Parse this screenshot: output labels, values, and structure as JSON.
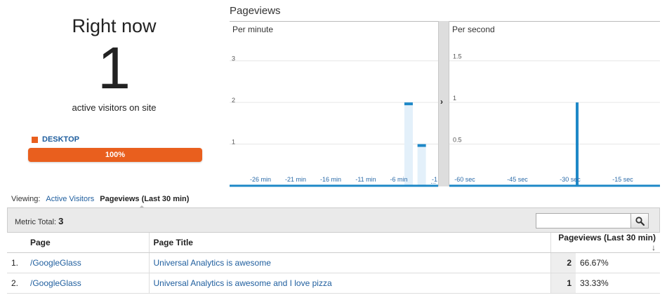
{
  "summary": {
    "title": "Right now",
    "active_count": "1",
    "caption": "active visitors on site",
    "device_label": "DESKTOP",
    "device_percent_label": "100%",
    "device_fraction": 1.0,
    "device_color": "#e95f1e"
  },
  "pageviews": {
    "title": "Pageviews",
    "per_minute": {
      "title": "Per minute",
      "y_ticks": [
        "3",
        "2",
        "1"
      ],
      "x_ticks": [
        "-26 min",
        "-21 min",
        "-16 min",
        "-11 min",
        "-6 min",
        "-1"
      ],
      "truncated_label": "..."
    },
    "per_second": {
      "title": "Per second",
      "y_ticks": [
        "1.5",
        "1",
        "0.5"
      ],
      "x_ticks": [
        "-60 sec",
        "-45 sec",
        "-30 sec",
        "-15 sec"
      ]
    },
    "divider_icon": "chevron-right-icon"
  },
  "chart_data": [
    {
      "type": "bar",
      "title": "Per minute",
      "xlabel": "",
      "ylabel": "",
      "ylim": [
        0,
        3.5
      ],
      "x_ticks": [
        "-26 min",
        "-21 min",
        "-16 min",
        "-11 min",
        "-6 min",
        "-1"
      ],
      "minutes": [
        -30,
        -29,
        -28,
        -27,
        -26,
        -25,
        -24,
        -23,
        -22,
        -21,
        -20,
        -19,
        -18,
        -17,
        -16,
        -15,
        -14,
        -13,
        -12,
        -11,
        -10,
        -9,
        -8,
        -7,
        -6,
        -5,
        -4,
        -3,
        -2,
        -1
      ],
      "values": [
        0,
        0,
        0,
        0,
        0,
        0,
        0,
        0,
        0,
        0,
        0,
        0,
        0,
        0,
        0,
        0,
        0,
        0,
        0,
        0,
        0,
        0,
        0,
        0,
        0,
        0,
        2,
        0,
        1,
        0
      ],
      "color": "#1e88c7"
    },
    {
      "type": "bar",
      "title": "Per second",
      "xlabel": "",
      "ylabel": "",
      "ylim": [
        0,
        1.75
      ],
      "x_ticks": [
        "-60 sec",
        "-45 sec",
        "-30 sec",
        "-15 sec"
      ],
      "seconds": [
        -28
      ],
      "values": [
        1
      ],
      "color": "#1e88c7"
    }
  ],
  "viewing": {
    "label": "Viewing:",
    "active_link": "Active Visitors",
    "current": "Pageviews (Last 30 min)"
  },
  "table": {
    "metric_label": "Metric Total:",
    "metric_value": "3",
    "search_placeholder": "",
    "search_icon": "search-icon",
    "headers": {
      "page": "Page",
      "page_title": "Page Title",
      "pageviews": "Pageviews (Last 30 min)",
      "sort_icon": "arrow-down-icon"
    },
    "rows": [
      {
        "index": "1.",
        "page": "/GoogleGlass",
        "title": "Universal Analytics is awesome",
        "count": "2",
        "percent": "66.67%"
      },
      {
        "index": "2.",
        "page": "/GoogleGlass",
        "title": "Universal Analytics is awesome and I love pizza",
        "count": "1",
        "percent": "33.33%"
      }
    ]
  }
}
